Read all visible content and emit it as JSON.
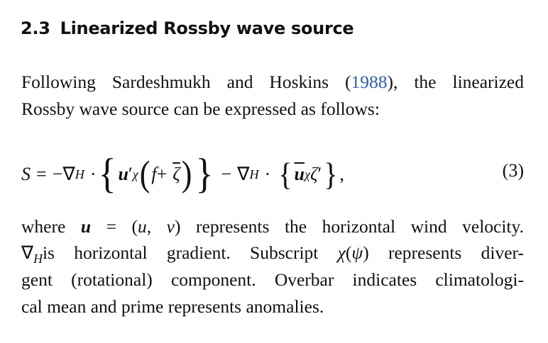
{
  "section": {
    "number": "2.3",
    "title": "Linearized Rossby wave source"
  },
  "para1": {
    "line1_pre": "Following Sardeshmukh and Hoskins (",
    "citation": "1988",
    "line1_post": "), the linearized",
    "line2": "Rossby wave source can be expressed as follows:"
  },
  "equation": {
    "S": "S",
    "eq": "=",
    "minus": "−",
    "nabla": "∇",
    "H": "H",
    "dot": "·",
    "lbrace": "{",
    "rbrace": "}",
    "lparen": "(",
    "rparen": ")",
    "u": "u",
    "prime": "′",
    "chi": "χ",
    "f": "f",
    "plus": "+",
    "zeta": "ζ",
    "comma": ",",
    "number": "(3)"
  },
  "para2": {
    "l1_a": " where ",
    "l1_u": "u",
    "l1_b": " = (",
    "l1_u2": "u",
    "l1_c": ", ",
    "l1_v": "v",
    "l1_d": ") represents the horizontal wind velocity.",
    "l2_nabla": "∇",
    "l2_H": "H",
    "l2_a": "is horizontal gradient. Subscript ",
    "l2_chi": "χ",
    "l2_b": "(",
    "l2_psi": "ψ",
    "l2_c": ") represents diver-",
    "l3": "gent (rotational) component. Overbar indicates climatologi-",
    "l4": "cal mean and prime represents anomalies."
  },
  "colors": {
    "citation": "#2b5fb0",
    "text": "#111111"
  }
}
